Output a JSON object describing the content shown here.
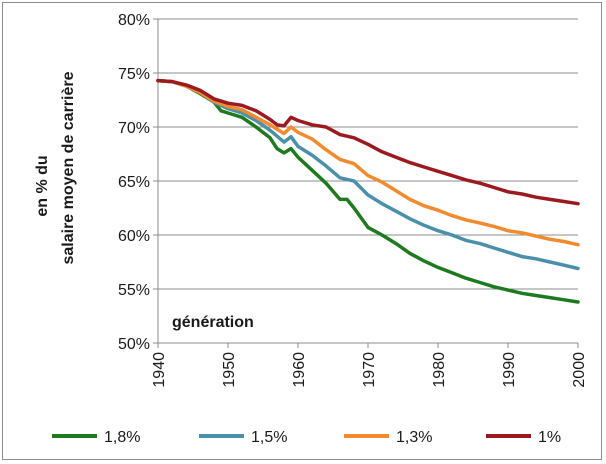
{
  "chart_data": {
    "type": "line",
    "title": "",
    "xlabel": "génération",
    "ylabel_line1": "en % du",
    "ylabel_line2": "salaire moyen de carrière",
    "xlim": [
      1940,
      2000
    ],
    "ylim": [
      50,
      80
    ],
    "x_ticks": [
      "1940",
      "1950",
      "1960",
      "1970",
      "1980",
      "1990",
      "2000"
    ],
    "y_ticks": [
      "50%",
      "55%",
      "60%",
      "65%",
      "70%",
      "75%",
      "80%"
    ],
    "x_tick_values": [
      1940,
      1950,
      1960,
      1970,
      1980,
      1990,
      2000
    ],
    "y_tick_values": [
      50,
      55,
      60,
      65,
      70,
      75,
      80
    ],
    "legend_position": "bottom",
    "series": [
      {
        "name": "1,8%",
        "color": "#1e7a1e",
        "x": [
          1940,
          1942,
          1944,
          1946,
          1948,
          1949,
          1950,
          1952,
          1954,
          1956,
          1957,
          1958,
          1959,
          1960,
          1962,
          1964,
          1966,
          1967,
          1968,
          1970,
          1972,
          1974,
          1976,
          1978,
          1980,
          1982,
          1984,
          1986,
          1988,
          1990,
          1992,
          1994,
          1996,
          1998,
          2000
        ],
        "y": [
          74.3,
          74.2,
          73.8,
          73.1,
          72.3,
          71.5,
          71.3,
          70.9,
          70.0,
          69.0,
          68.0,
          67.6,
          68.0,
          67.2,
          66.0,
          64.8,
          63.3,
          63.3,
          62.5,
          60.7,
          60.0,
          59.2,
          58.3,
          57.6,
          57.0,
          56.5,
          56.0,
          55.6,
          55.2,
          54.9,
          54.6,
          54.4,
          54.2,
          54.0,
          53.8
        ]
      },
      {
        "name": "1,5%",
        "color": "#4a90aa",
        "x": [
          1940,
          1942,
          1944,
          1946,
          1948,
          1950,
          1952,
          1954,
          1956,
          1958,
          1959,
          1960,
          1962,
          1964,
          1966,
          1968,
          1970,
          1972,
          1974,
          1976,
          1978,
          1980,
          1982,
          1984,
          1986,
          1988,
          1990,
          1992,
          1994,
          1996,
          1998,
          2000
        ],
        "y": [
          74.3,
          74.2,
          73.8,
          73.2,
          72.3,
          71.7,
          71.3,
          70.6,
          69.7,
          68.6,
          69.1,
          68.2,
          67.4,
          66.4,
          65.3,
          65.0,
          63.7,
          62.9,
          62.2,
          61.5,
          60.9,
          60.4,
          60.0,
          59.5,
          59.2,
          58.8,
          58.4,
          58.0,
          57.8,
          57.5,
          57.2,
          56.9
        ]
      },
      {
        "name": "1,3%",
        "color": "#f28a2e",
        "x": [
          1940,
          1942,
          1944,
          1946,
          1948,
          1950,
          1952,
          1954,
          1956,
          1958,
          1959,
          1960,
          1962,
          1964,
          1966,
          1968,
          1970,
          1972,
          1974,
          1976,
          1978,
          1980,
          1982,
          1984,
          1986,
          1988,
          1990,
          1992,
          1994,
          1996,
          1998,
          2000
        ],
        "y": [
          74.3,
          74.2,
          73.8,
          73.2,
          72.4,
          71.9,
          71.6,
          70.9,
          70.2,
          69.4,
          70.0,
          69.5,
          68.9,
          67.9,
          67.0,
          66.6,
          65.5,
          64.9,
          64.1,
          63.3,
          62.7,
          62.3,
          61.8,
          61.4,
          61.1,
          60.8,
          60.4,
          60.2,
          59.9,
          59.6,
          59.4,
          59.1
        ]
      },
      {
        "name": "1%",
        "color": "#9c1a1f",
        "x": [
          1940,
          1942,
          1944,
          1946,
          1948,
          1950,
          1952,
          1954,
          1956,
          1957,
          1958,
          1959,
          1960,
          1962,
          1964,
          1966,
          1968,
          1970,
          1972,
          1974,
          1976,
          1978,
          1980,
          1982,
          1984,
          1986,
          1988,
          1990,
          1992,
          1994,
          1996,
          1998,
          2000
        ],
        "y": [
          74.3,
          74.2,
          73.9,
          73.4,
          72.6,
          72.2,
          72.0,
          71.5,
          70.7,
          70.2,
          70.1,
          70.9,
          70.6,
          70.2,
          70.0,
          69.3,
          69.0,
          68.4,
          67.7,
          67.2,
          66.7,
          66.3,
          65.9,
          65.5,
          65.1,
          64.8,
          64.4,
          64.0,
          63.8,
          63.5,
          63.3,
          63.1,
          62.9
        ]
      }
    ]
  }
}
